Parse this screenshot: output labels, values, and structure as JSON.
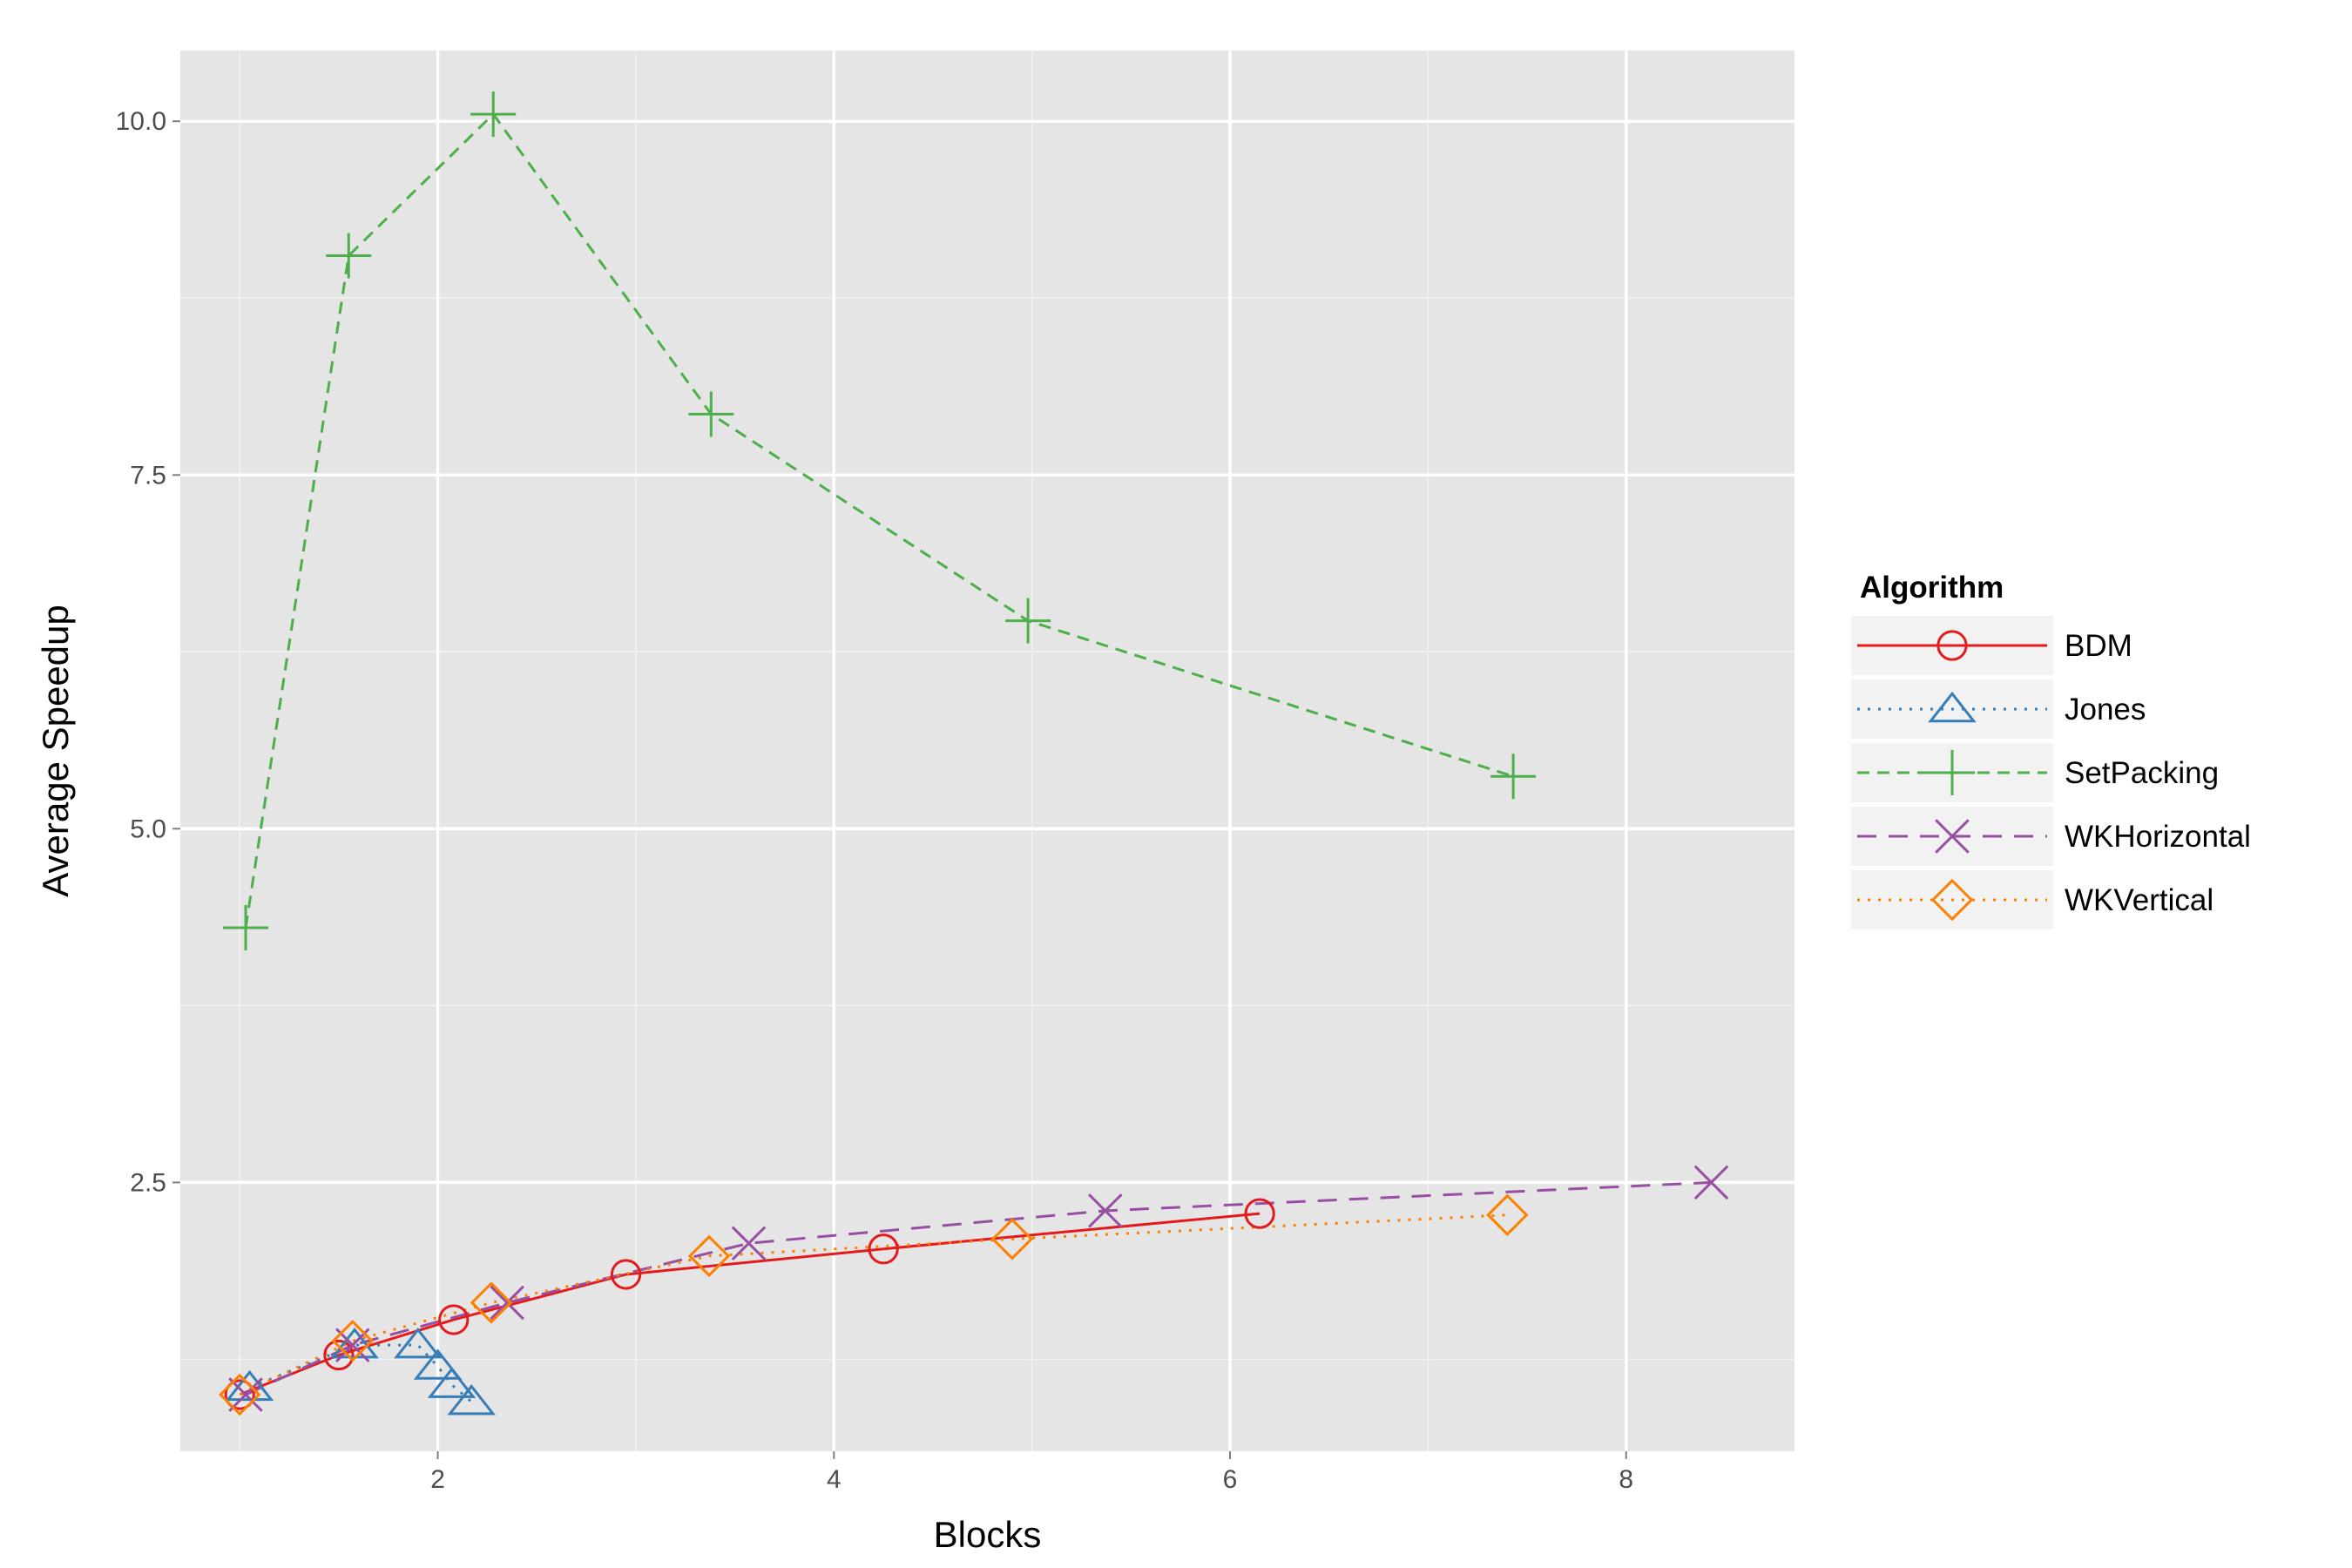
{
  "chart_data": {
    "type": "line",
    "xlabel": "Blocks",
    "ylabel": "Average Speedup",
    "xlim": [
      0.7,
      8.85
    ],
    "ylim": [
      0.6,
      10.5
    ],
    "x_ticks": [
      2,
      4,
      6,
      8
    ],
    "x_tick_labels": [
      "2",
      "4",
      "6",
      "8"
    ],
    "y_ticks": [
      2.5,
      5.0,
      7.5,
      10.0
    ],
    "y_tick_labels": [
      "2.5",
      "5.0",
      "7.5",
      "10.0"
    ],
    "x_minor": [
      1,
      3,
      5,
      7
    ],
    "y_minor": [
      1.25,
      3.75,
      6.25,
      8.75
    ],
    "grid": true,
    "background": "#e5e5e5",
    "legend": {
      "title": "Algorithm",
      "position": "right"
    },
    "series": [
      {
        "name": "BDM",
        "color": "#e41a1c",
        "dash": "solid",
        "marker": "circle",
        "x": [
          1.0,
          1.5,
          2.08,
          2.95,
          4.25,
          6.15
        ],
        "y": [
          1.0,
          1.28,
          1.53,
          1.85,
          2.03,
          2.28
        ]
      },
      {
        "name": "Jones",
        "color": "#377eb8",
        "dash": "dotted",
        "marker": "triangle",
        "x": [
          1.05,
          1.58,
          1.9,
          2.0,
          2.07,
          2.17
        ],
        "y": [
          1.05,
          1.35,
          1.35,
          1.2,
          1.07,
          0.95
        ]
      },
      {
        "name": "SetPacking",
        "color": "#4daf4a",
        "dash": "dashed",
        "marker": "plus",
        "x": [
          1.03,
          1.55,
          2.28,
          3.38,
          4.98,
          7.43
        ],
        "y": [
          4.3,
          9.05,
          10.05,
          7.93,
          6.47,
          5.37
        ]
      },
      {
        "name": "WKHorizontal",
        "color": "#984ea3",
        "dash": "longdash",
        "marker": "x",
        "x": [
          1.03,
          1.57,
          2.35,
          3.57,
          5.37,
          8.43
        ],
        "y": [
          1.0,
          1.35,
          1.65,
          2.07,
          2.3,
          2.5
        ]
      },
      {
        "name": "WKVertical",
        "color": "#ff7f00",
        "dash": "dotted",
        "marker": "diamond",
        "x": [
          1.0,
          1.57,
          2.27,
          3.37,
          4.9,
          7.4
        ],
        "y": [
          1.0,
          1.38,
          1.65,
          1.98,
          2.1,
          2.27
        ]
      }
    ]
  }
}
